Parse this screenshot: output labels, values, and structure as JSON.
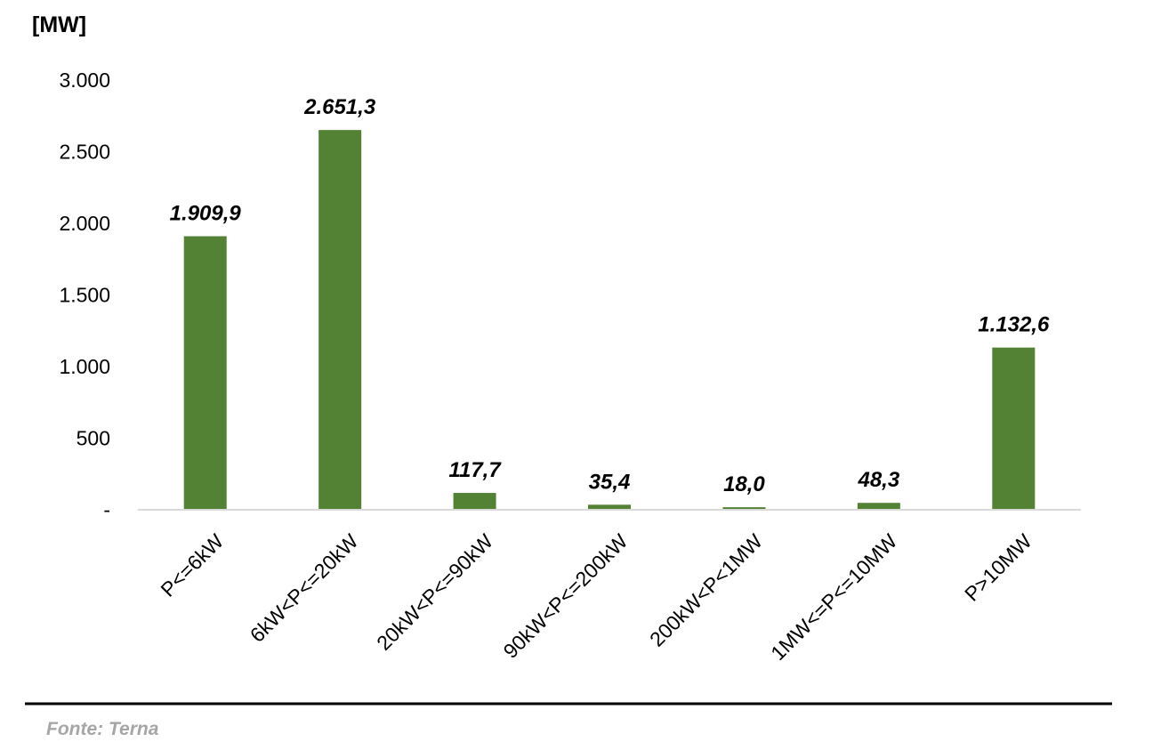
{
  "chart_data": {
    "type": "bar",
    "title": "",
    "unit_label": "[MW]",
    "xlabel": "",
    "ylabel": "",
    "categories": [
      "P<=6kW",
      "6kW<P<=20kW",
      "20kW<P<=90kW",
      "90kW<P<=200kW",
      "200kW<P<1MW",
      "1MW<=P<=10MW",
      "P>10MW"
    ],
    "values": [
      1909.9,
      2651.3,
      117.7,
      35.4,
      18.0,
      48.3,
      1132.6
    ],
    "data_labels": [
      "1.909,9",
      "2.651,3",
      "117,7",
      "35,4",
      "18,0",
      "48,3",
      "1.132,6"
    ],
    "y_ticks": [
      0,
      500,
      1000,
      1500,
      2000,
      2500,
      3000
    ],
    "y_tick_labels": [
      "-",
      "500",
      "1.000",
      "1.500",
      "2.000",
      "2.500",
      "3.000"
    ],
    "ylim": [
      0,
      3000
    ],
    "grid": false,
    "legend": "none",
    "bar_color": "#548235"
  },
  "footer": {
    "source": "Fonte: Terna"
  }
}
